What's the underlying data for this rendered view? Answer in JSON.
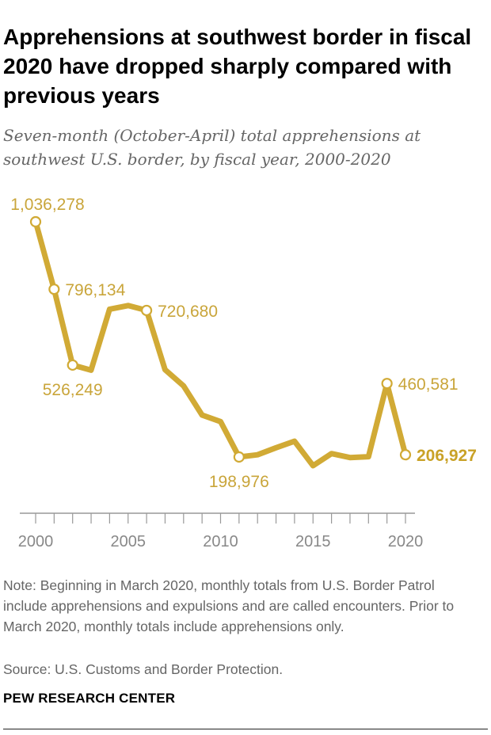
{
  "header": {
    "title": "Apprehensions at southwest border in fiscal 2020 have dropped sharply compared with previous years",
    "subtitle": "Seven-month (October-April) total apprehensions at southwest U.S. border, by fiscal year, 2000-2020"
  },
  "footer": {
    "note": "Note: Beginning in March 2020, monthly totals from U.S. Border Patrol include apprehensions and expulsions and are called encounters. Prior to March 2020, monthly totals include apprehensions only.",
    "source": "Source: U.S. Customs and Border Protection.",
    "org": "PEW RESEARCH CENTER"
  },
  "colors": {
    "line": "#d1aa35",
    "marker_fill": "#ffffff",
    "axis": "#999999",
    "tick_text": "#888888"
  },
  "chart_data": {
    "type": "line",
    "title": "Apprehensions at southwest border in fiscal 2020 have dropped sharply compared with previous years",
    "subtitle": "Seven-month (October-April) total apprehensions at southwest U.S. border, by fiscal year, 2000-2020",
    "xlabel": "",
    "ylabel": "",
    "x": [
      2000,
      2001,
      2002,
      2003,
      2004,
      2005,
      2006,
      2007,
      2008,
      2009,
      2010,
      2011,
      2012,
      2013,
      2014,
      2015,
      2016,
      2017,
      2018,
      2019,
      2020
    ],
    "values": [
      1036278,
      796134,
      526249,
      508000,
      725000,
      738000,
      720680,
      510000,
      452000,
      348000,
      325000,
      198976,
      207000,
      232000,
      255000,
      168000,
      211000,
      197000,
      200000,
      460581,
      206927
    ],
    "xlim": [
      2000,
      2020
    ],
    "ylim": [
      0,
      1036278
    ],
    "xticks": [
      2000,
      2001,
      2002,
      2003,
      2004,
      2005,
      2006,
      2007,
      2008,
      2009,
      2010,
      2011,
      2012,
      2013,
      2014,
      2015,
      2016,
      2017,
      2018,
      2019,
      2020
    ],
    "xtick_labels": [
      {
        "x": 2000,
        "label": "2000"
      },
      {
        "x": 2005,
        "label": "2005"
      },
      {
        "x": 2010,
        "label": "2010"
      },
      {
        "x": 2015,
        "label": "2015"
      },
      {
        "x": 2020,
        "label": "2020"
      }
    ],
    "annotations": [
      {
        "x": 2000,
        "label": "1,036,278",
        "position": "above",
        "bold": false
      },
      {
        "x": 2001,
        "label": "796,134",
        "position": "right",
        "bold": false
      },
      {
        "x": 2002,
        "label": "526,249",
        "position": "below",
        "bold": false
      },
      {
        "x": 2006,
        "label": "720,680",
        "position": "right",
        "bold": false
      },
      {
        "x": 2011,
        "label": "198,976",
        "position": "below",
        "bold": false
      },
      {
        "x": 2019,
        "label": "460,581",
        "position": "right",
        "bold": false
      },
      {
        "x": 2020,
        "label": "206,927",
        "position": "right",
        "bold": true
      }
    ],
    "grid": false,
    "legend": "none"
  }
}
